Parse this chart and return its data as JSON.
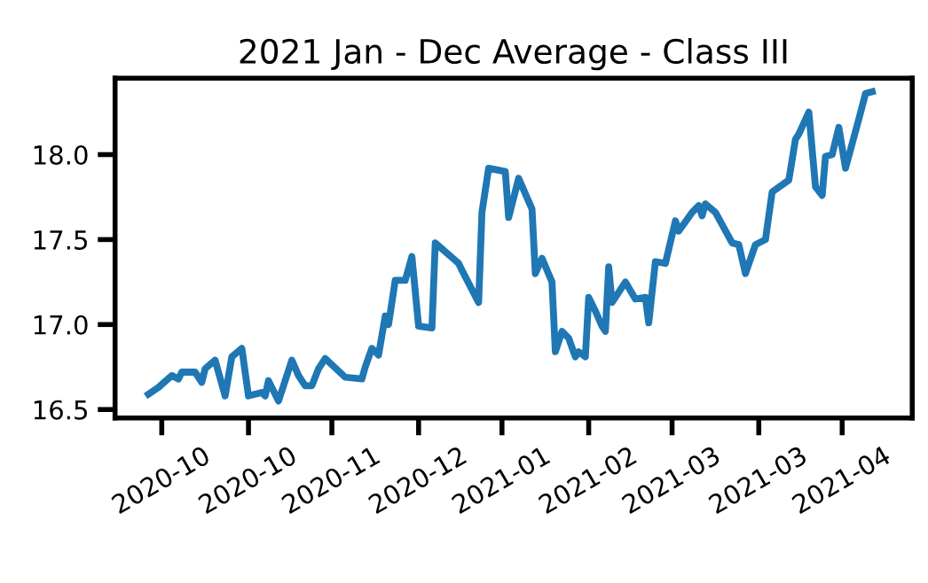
{
  "chart_data": {
    "type": "line",
    "title": "2021 Jan - Dec Average - Class III",
    "x": [
      "2020-09-27",
      "2020-09-30",
      "2020-10-04",
      "2020-10-06",
      "2020-10-07",
      "2020-10-11",
      "2020-10-13",
      "2020-10-14",
      "2020-10-17",
      "2020-10-20",
      "2020-10-22",
      "2020-10-25",
      "2020-10-27",
      "2020-10-31",
      "2020-11-01",
      "2020-11-02",
      "2020-11-05",
      "2020-11-09",
      "2020-11-11",
      "2020-11-13",
      "2020-11-15",
      "2020-11-17",
      "2020-11-19",
      "2020-11-25",
      "2020-11-30",
      "2020-12-01",
      "2020-12-03",
      "2020-12-05",
      "2020-12-07",
      "2020-12-08",
      "2020-12-10",
      "2020-12-13",
      "2020-12-15",
      "2020-12-17",
      "2020-12-21",
      "2020-12-22",
      "2020-12-29",
      "2020-12-30",
      "2021-01-04",
      "2021-01-05",
      "2021-01-07",
      "2021-01-12",
      "2021-01-13",
      "2021-01-16",
      "2021-01-20",
      "2021-01-21",
      "2021-01-23",
      "2021-01-26",
      "2021-01-27",
      "2021-01-29",
      "2021-01-31",
      "2021-02-02",
      "2021-02-03",
      "2021-02-05",
      "2021-02-06",
      "2021-02-08",
      "2021-02-10",
      "2021-02-11",
      "2021-02-12",
      "2021-02-13",
      "2021-02-17",
      "2021-02-20",
      "2021-02-23",
      "2021-02-24",
      "2021-02-26",
      "2021-03-01",
      "2021-03-04",
      "2021-03-05",
      "2021-03-09",
      "2021-03-11",
      "2021-03-12",
      "2021-03-13",
      "2021-03-16",
      "2021-03-21",
      "2021-03-23",
      "2021-03-25",
      "2021-03-28",
      "2021-03-31",
      "2021-04-02",
      "2021-04-07",
      "2021-04-09",
      "2021-04-10",
      "2021-04-13",
      "2021-04-15",
      "2021-04-17",
      "2021-04-18",
      "2021-04-20",
      "2021-04-22",
      "2021-04-24",
      "2021-04-28",
      "2021-04-30",
      "2021-05-02"
    ],
    "series": [
      {
        "color": "#1f77b4",
        "values": [
          16.59,
          16.63,
          16.7,
          16.68,
          16.72,
          16.72,
          16.66,
          16.74,
          16.79,
          16.58,
          16.81,
          16.86,
          16.58,
          16.6,
          16.58,
          16.67,
          16.55,
          16.79,
          16.7,
          16.64,
          16.64,
          16.74,
          16.8,
          16.69,
          16.68,
          16.75,
          16.86,
          16.82,
          17.05,
          17.0,
          17.26,
          17.26,
          17.4,
          16.99,
          16.98,
          17.48,
          17.36,
          17.32,
          17.13,
          17.66,
          17.92,
          17.9,
          17.63,
          17.86,
          17.68,
          17.3,
          17.39,
          17.25,
          16.84,
          16.96,
          16.92,
          16.81,
          16.84,
          16.81,
          17.16,
          17.08,
          16.99,
          16.96,
          17.34,
          17.13,
          17.25,
          17.15,
          17.16,
          17.01,
          17.37,
          17.36,
          17.61,
          17.55,
          17.66,
          17.7,
          17.64,
          17.71,
          17.66,
          17.48,
          17.47,
          17.3,
          17.47,
          17.5,
          17.78,
          17.85,
          18.09,
          18.12,
          18.25,
          17.81,
          17.76,
          17.99,
          18.0,
          18.16,
          17.92,
          18.21,
          18.36,
          18.37
        ]
      }
    ],
    "xlim": [
      "2020-09-17",
      "2021-05-14"
    ],
    "xticks": [
      {
        "value": "2020-10-01",
        "label": "2020-10"
      },
      {
        "value": "2020-10-27",
        "label": "2020-10"
      },
      {
        "value": "2020-11-21",
        "label": "2020-11"
      },
      {
        "value": "2020-12-17",
        "label": "2020-12"
      },
      {
        "value": "2021-01-11",
        "label": "2021-01"
      },
      {
        "value": "2021-02-06",
        "label": "2021-02"
      },
      {
        "value": "2021-03-03",
        "label": "2021-03"
      },
      {
        "value": "2021-03-29",
        "label": "2021-03"
      },
      {
        "value": "2021-04-23",
        "label": "2021-04"
      }
    ],
    "ylim": [
      16.45,
      18.45
    ],
    "yticks": [
      16.5,
      {
        "value": 17,
        "label": "17.0"
      },
      17.5,
      {
        "value": 18,
        "label": "18.0"
      }
    ],
    "grid": false,
    "legend": false,
    "marker": "none",
    "line_style": "solid"
  }
}
